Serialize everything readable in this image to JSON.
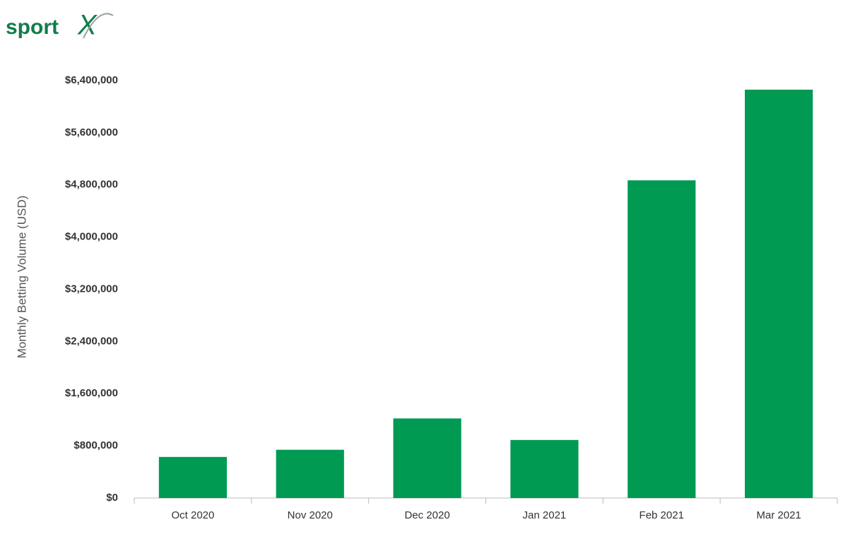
{
  "logo": {
    "text": "sport",
    "mark": "X"
  },
  "chart_data": {
    "type": "bar",
    "y_label": "Monthly Betting Volume (USD)",
    "categories": [
      "Oct 2020",
      "Nov 2020",
      "Dec 2020",
      "Jan 2021",
      "Feb 2021",
      "Mar 2021"
    ],
    "values": [
      630000,
      740000,
      1220000,
      890000,
      4870000,
      6260000
    ],
    "color": "#009a53",
    "ylim": [
      0,
      6400000
    ],
    "yticks": [
      {
        "value": 0,
        "label": "$0"
      },
      {
        "value": 800000,
        "label": "$800,000"
      },
      {
        "value": 1600000,
        "label": "$1,600,000"
      },
      {
        "value": 2400000,
        "label": "$2,400,000"
      },
      {
        "value": 3200000,
        "label": "$3,200,000"
      },
      {
        "value": 4000000,
        "label": "$4,000,000"
      },
      {
        "value": 4800000,
        "label": "$4,800,000"
      },
      {
        "value": 5600000,
        "label": "$5,600,000"
      },
      {
        "value": 6400000,
        "label": "$6,400,000"
      }
    ],
    "grid": false
  }
}
